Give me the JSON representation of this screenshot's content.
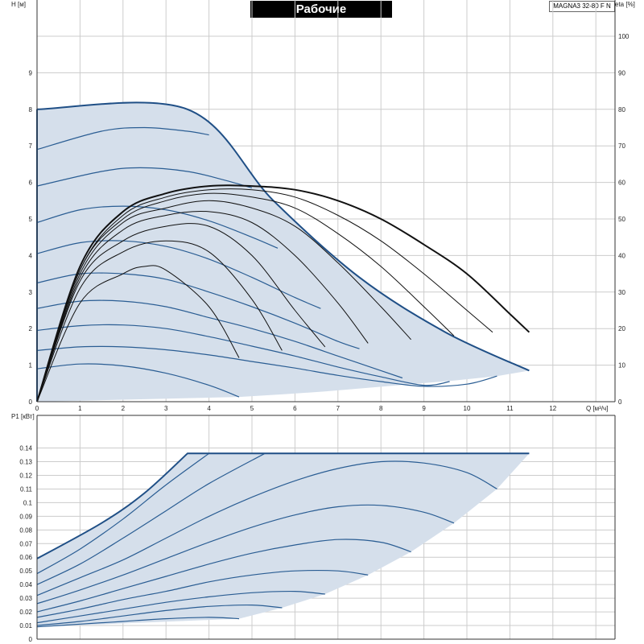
{
  "title": "Рабочие характеристики",
  "model": "MAGNA3 32-80 F N",
  "colors": {
    "fill": "#d5dfeb",
    "curve": "#2a5d93",
    "envelope": "#1f4f86",
    "efficiency": "#111111",
    "grid": "#cccccc"
  },
  "chart_data": [
    {
      "type": "line",
      "name": "top-head-efficiency",
      "xlabel": "Q [м³/ч]",
      "ylabel": "H [м]",
      "y2label": "eta [%]",
      "xlim": [
        0,
        13
      ],
      "ylim": [
        0,
        10
      ],
      "y2lim": [
        0,
        110
      ],
      "x_ticks": [
        "0",
        "1",
        "2",
        "3",
        "4",
        "5",
        "6",
        "7",
        "8",
        "9",
        "10",
        "11",
        "12"
      ],
      "y_ticks": [
        "0",
        "1",
        "2",
        "3",
        "4",
        "5",
        "6",
        "7",
        "8",
        "9"
      ],
      "y2_ticks": [
        "0",
        "10",
        "20",
        "30",
        "40",
        "50",
        "60",
        "70",
        "80",
        "90",
        "100"
      ],
      "grid": true,
      "envelope": {
        "max_speed": [
          [
            0,
            8
          ],
          [
            3.5,
            8
          ],
          [
            5.5,
            5.5
          ],
          [
            7.5,
            3.4
          ],
          [
            9.5,
            1.9
          ],
          [
            11.45,
            0.85
          ]
        ],
        "min_flow_edge": [
          [
            0,
            0
          ],
          [
            0,
            8
          ]
        ],
        "bottom_edge": [
          [
            4.7,
            0.13
          ],
          [
            5.7,
            0.2
          ],
          [
            6.7,
            0.28
          ],
          [
            7.7,
            0.38
          ],
          [
            8.7,
            0.48
          ],
          [
            9.7,
            0.58
          ],
          [
            10.7,
            0.7
          ],
          [
            11.45,
            0.85
          ]
        ]
      },
      "head_curves": [
        {
          "x": [
            0,
            1.5,
            2.5,
            3.5,
            4.0
          ],
          "y": [
            6.9,
            7.4,
            7.5,
            7.4,
            7.3
          ]
        },
        {
          "x": [
            0,
            1.5,
            2.4,
            3.5,
            4.4,
            5.0
          ],
          "y": [
            5.9,
            6.3,
            6.4,
            6.3,
            6.05,
            5.85
          ]
        },
        {
          "x": [
            0,
            1,
            2,
            3,
            4,
            5,
            5.6
          ],
          "y": [
            4.9,
            5.25,
            5.35,
            5.25,
            4.95,
            4.5,
            4.2
          ]
        },
        {
          "x": [
            0,
            1,
            2,
            3,
            4,
            5,
            6,
            6.6
          ],
          "y": [
            4.05,
            4.35,
            4.4,
            4.25,
            3.9,
            3.4,
            2.85,
            2.55
          ]
        },
        {
          "x": [
            0,
            1,
            2,
            3,
            4,
            5,
            6,
            7,
            7.5
          ],
          "y": [
            3.25,
            3.5,
            3.5,
            3.35,
            3.0,
            2.6,
            2.15,
            1.65,
            1.45
          ]
        },
        {
          "x": [
            0,
            1,
            2,
            3,
            4,
            5,
            6,
            7,
            8,
            8.5
          ],
          "y": [
            2.55,
            2.75,
            2.75,
            2.6,
            2.3,
            2.0,
            1.65,
            1.25,
            0.85,
            0.65
          ]
        },
        {
          "x": [
            0,
            1,
            2,
            3,
            4,
            5,
            6,
            7,
            8,
            9,
            9.6
          ],
          "y": [
            1.95,
            2.08,
            2.1,
            2.0,
            1.78,
            1.52,
            1.25,
            0.95,
            0.68,
            0.45,
            0.55
          ]
        },
        {
          "x": [
            0,
            1,
            2,
            3,
            4,
            5,
            6,
            7,
            8,
            9,
            10,
            10.7
          ],
          "y": [
            1.4,
            1.5,
            1.5,
            1.42,
            1.28,
            1.1,
            0.92,
            0.72,
            0.55,
            0.42,
            0.48,
            0.7
          ]
        },
        {
          "x": [
            0,
            1,
            2,
            3,
            4,
            4.7
          ],
          "y": [
            0.9,
            1.03,
            0.98,
            0.78,
            0.45,
            0.13
          ]
        }
      ],
      "efficiency_curves": [
        {
          "x": [
            0,
            1,
            2,
            2.5,
            3,
            4,
            4.7
          ],
          "y": [
            0,
            27,
            35,
            37,
            36,
            26,
            12
          ]
        },
        {
          "x": [
            0,
            1,
            2,
            3,
            4,
            5,
            5.7
          ],
          "y": [
            0,
            31,
            41,
            44,
            41,
            28,
            14
          ]
        },
        {
          "x": [
            0,
            1,
            2,
            3,
            4,
            5,
            6,
            6.7
          ],
          "y": [
            0,
            33,
            44,
            48,
            48,
            40,
            25,
            15
          ]
        },
        {
          "x": [
            0,
            1,
            2,
            3,
            4,
            5,
            6,
            7,
            7.7
          ],
          "y": [
            0,
            34,
            47,
            51,
            52,
            49,
            40,
            27,
            16
          ]
        },
        {
          "x": [
            0,
            1,
            2,
            3,
            4,
            5,
            6,
            7,
            8,
            8.7
          ],
          "y": [
            0,
            35,
            49,
            53,
            55,
            53,
            48,
            38,
            26,
            17
          ]
        },
        {
          "x": [
            0,
            1,
            2,
            3,
            4,
            5,
            6,
            7,
            8,
            9,
            9.7
          ],
          "y": [
            0,
            36,
            50,
            55,
            57,
            56,
            53,
            46,
            37,
            26,
            18
          ]
        },
        {
          "x": [
            0,
            1,
            2,
            3,
            4,
            5,
            6,
            7,
            8,
            9,
            10,
            10.6
          ],
          "y": [
            0,
            36,
            51,
            56,
            58,
            58,
            56,
            51,
            44,
            35,
            25,
            19
          ]
        },
        {
          "x": [
            0,
            1,
            2,
            3,
            4,
            5,
            6,
            7,
            8,
            9,
            10,
            11,
            11.45
          ],
          "y": [
            0,
            37,
            52,
            57,
            59,
            59,
            58,
            55,
            50,
            43,
            35,
            24,
            19
          ]
        }
      ]
    },
    {
      "type": "line",
      "name": "bottom-power",
      "xlabel": "",
      "ylabel": "P1 [кВт]",
      "xlim": [
        0,
        13
      ],
      "ylim": [
        0,
        0.15
      ],
      "y_ticks": [
        "0",
        "0.01",
        "0.02",
        "0.03",
        "0.04",
        "0.05",
        "0.06",
        "0.07",
        "0.08",
        "0.09",
        "0.1",
        "0.11",
        "0.12",
        "0.13",
        "0.14"
      ],
      "grid": true,
      "envelope": {
        "top": [
          [
            0,
            0.059
          ],
          [
            1.5,
            0.085
          ],
          [
            2.5,
            0.107
          ],
          [
            3.5,
            0.136
          ],
          [
            11.45,
            0.136
          ]
        ],
        "right_edge": [
          [
            11.45,
            0.136
          ],
          [
            10.7,
            0.11
          ],
          [
            9.7,
            0.085
          ],
          [
            8.7,
            0.064
          ],
          [
            7.7,
            0.047
          ],
          [
            6.7,
            0.033
          ],
          [
            5.7,
            0.023
          ],
          [
            4.7,
            0.015
          ],
          [
            0,
            0.009
          ]
        ]
      },
      "power_curves": [
        {
          "x": [
            0,
            1,
            2,
            3,
            4.0
          ],
          "y": [
            0.048,
            0.066,
            0.088,
            0.113,
            0.136
          ]
        },
        {
          "x": [
            0,
            1,
            2,
            3,
            4,
            5.3
          ],
          "y": [
            0.04,
            0.055,
            0.074,
            0.094,
            0.114,
            0.136
          ]
        },
        {
          "x": [
            0,
            1,
            2,
            3,
            4,
            5,
            6,
            7,
            8,
            9,
            10,
            10.7
          ],
          "y": [
            0.032,
            0.045,
            0.058,
            0.074,
            0.09,
            0.104,
            0.116,
            0.125,
            0.13,
            0.129,
            0.122,
            0.11
          ]
        },
        {
          "x": [
            0,
            1,
            2,
            3,
            4,
            5,
            6,
            7,
            8,
            9,
            9.7
          ],
          "y": [
            0.026,
            0.036,
            0.047,
            0.059,
            0.071,
            0.082,
            0.091,
            0.097,
            0.098,
            0.093,
            0.085
          ]
        },
        {
          "x": [
            0,
            1,
            2,
            3,
            4,
            5,
            6,
            7,
            8,
            8.7
          ],
          "y": [
            0.02,
            0.028,
            0.037,
            0.046,
            0.055,
            0.063,
            0.069,
            0.073,
            0.071,
            0.064
          ]
        },
        {
          "x": [
            0,
            1,
            2,
            3,
            4,
            5,
            6,
            7,
            7.7
          ],
          "y": [
            0.016,
            0.022,
            0.029,
            0.035,
            0.042,
            0.047,
            0.05,
            0.05,
            0.047
          ]
        },
        {
          "x": [
            0,
            1,
            2,
            3,
            4,
            5,
            6,
            6.7
          ],
          "y": [
            0.012,
            0.017,
            0.022,
            0.027,
            0.031,
            0.034,
            0.035,
            0.033
          ]
        },
        {
          "x": [
            0,
            1,
            2,
            3,
            4,
            5,
            5.7
          ],
          "y": [
            0.01,
            0.013,
            0.017,
            0.021,
            0.024,
            0.025,
            0.023
          ]
        },
        {
          "x": [
            0,
            1,
            2,
            3,
            4,
            4.7
          ],
          "y": [
            0.009,
            0.011,
            0.013,
            0.015,
            0.016,
            0.015
          ]
        }
      ]
    }
  ]
}
